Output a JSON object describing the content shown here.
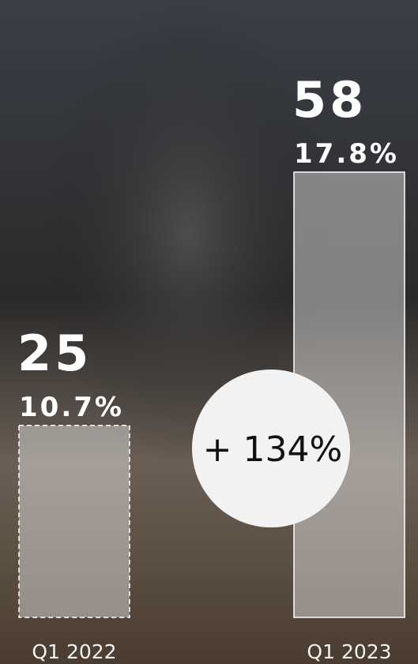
{
  "chart_data": {
    "type": "bar",
    "categories": [
      "Q1 2022",
      "Q1 2023"
    ],
    "values": [
      25,
      58
    ],
    "percentages": [
      "10.7%",
      "17.8%"
    ],
    "ylim": [
      0,
      58
    ],
    "annotation": "+ 134%"
  }
}
